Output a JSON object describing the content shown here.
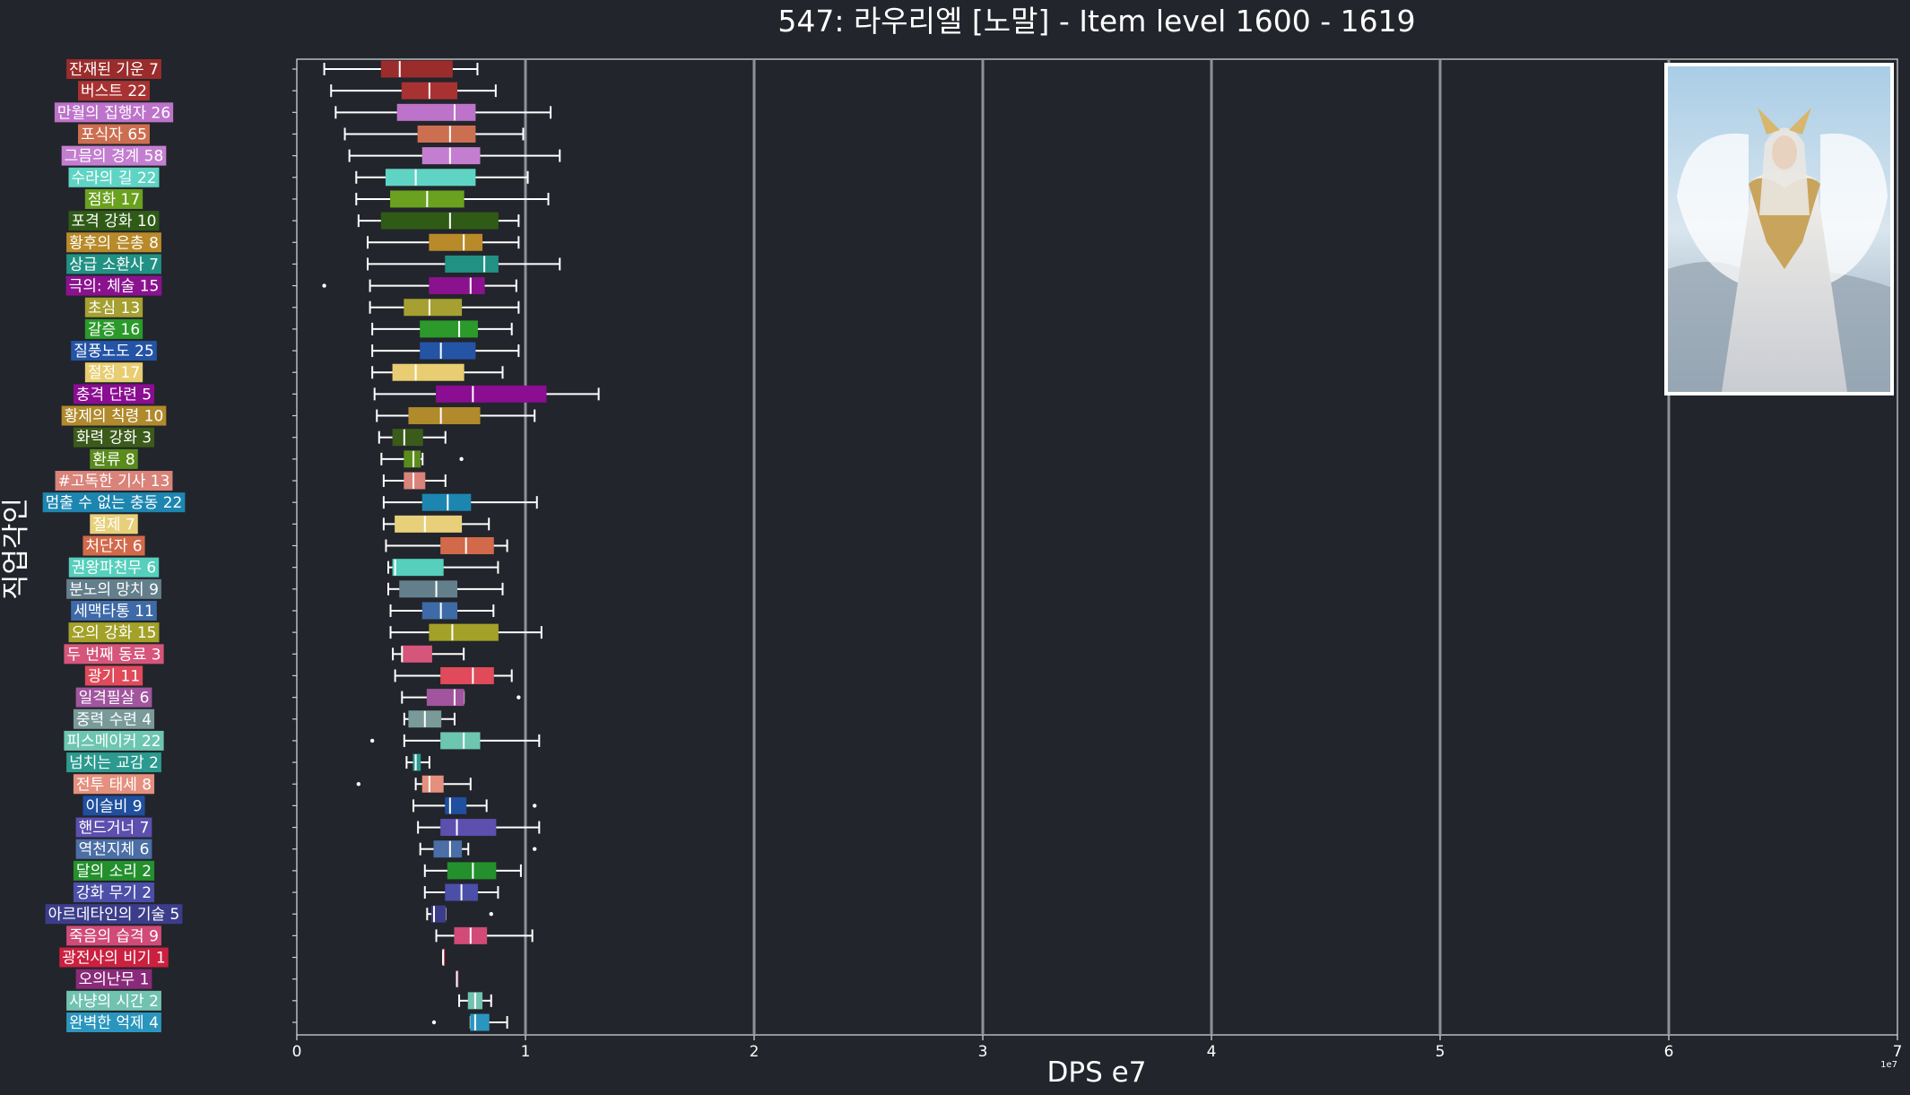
{
  "chart_data": {
    "type": "boxplot",
    "title": "547: 라우리엘 [노말] - Item level 1600 - 1619",
    "xlabel": "DPS e7",
    "ylabel": "직업각인",
    "xlim": [
      0,
      7
    ],
    "x_ticks": [
      "0",
      "1",
      "2",
      "3",
      "4",
      "5",
      "6",
      "7"
    ],
    "x_exponent_label": "1e7",
    "grid": "vertical",
    "categories": [
      {
        "label": "잔재된 기운 7",
        "color": "#9b2c2c",
        "whisker_low": 0.12,
        "q1": 0.37,
        "median": 0.45,
        "q3": 0.68,
        "whisker_high": 0.79,
        "outliers": []
      },
      {
        "label": "버스트 22",
        "color": "#a83232",
        "whisker_low": 0.15,
        "q1": 0.46,
        "median": 0.58,
        "q3": 0.7,
        "whisker_high": 0.87,
        "outliers": []
      },
      {
        "label": "만월의 집행자 26",
        "color": "#bd73c9",
        "whisker_low": 0.17,
        "q1": 0.44,
        "median": 0.69,
        "q3": 0.78,
        "whisker_high": 1.11,
        "outliers": []
      },
      {
        "label": "포식자 65",
        "color": "#cc6e50",
        "whisker_low": 0.21,
        "q1": 0.53,
        "median": 0.67,
        "q3": 0.78,
        "whisker_high": 0.99,
        "outliers": []
      },
      {
        "label": "그믐의 경계 58",
        "color": "#c47ed0",
        "whisker_low": 0.23,
        "q1": 0.55,
        "median": 0.67,
        "q3": 0.8,
        "whisker_high": 1.15,
        "outliers": []
      },
      {
        "label": "수라의 길 22",
        "color": "#5fd4c4",
        "whisker_low": 0.26,
        "q1": 0.39,
        "median": 0.52,
        "q3": 0.78,
        "whisker_high": 1.01,
        "outliers": []
      },
      {
        "label": "점화 17",
        "color": "#6aa11f",
        "whisker_low": 0.26,
        "q1": 0.41,
        "median": 0.57,
        "q3": 0.73,
        "whisker_high": 1.1,
        "outliers": []
      },
      {
        "label": "포격 강화 10",
        "color": "#2f5b17",
        "whisker_low": 0.27,
        "q1": 0.37,
        "median": 0.67,
        "q3": 0.88,
        "whisker_high": 0.97,
        "outliers": []
      },
      {
        "label": "황후의 은총 8",
        "color": "#b88a29",
        "whisker_low": 0.31,
        "q1": 0.58,
        "median": 0.73,
        "q3": 0.81,
        "whisker_high": 0.97,
        "outliers": []
      },
      {
        "label": "상급 소환사 7",
        "color": "#219184",
        "whisker_low": 0.31,
        "q1": 0.65,
        "median": 0.82,
        "q3": 0.88,
        "whisker_high": 1.15,
        "outliers": []
      },
      {
        "label": "극의: 체술 15",
        "color": "#8b128f",
        "whisker_low": 0.32,
        "q1": 0.58,
        "median": 0.76,
        "q3": 0.82,
        "whisker_high": 0.96,
        "outliers": [
          0.12
        ]
      },
      {
        "label": "초심 13",
        "color": "#a6a032",
        "whisker_low": 0.32,
        "q1": 0.47,
        "median": 0.58,
        "q3": 0.72,
        "whisker_high": 0.97,
        "outliers": []
      },
      {
        "label": "갈증 16",
        "color": "#2b9a2b",
        "whisker_low": 0.33,
        "q1": 0.54,
        "median": 0.71,
        "q3": 0.79,
        "whisker_high": 0.94,
        "outliers": []
      },
      {
        "label": "질풍노도 25",
        "color": "#2454a6",
        "whisker_low": 0.33,
        "q1": 0.54,
        "median": 0.63,
        "q3": 0.78,
        "whisker_high": 0.97,
        "outliers": []
      },
      {
        "label": "절정 17",
        "color": "#e8cd72",
        "whisker_low": 0.33,
        "q1": 0.42,
        "median": 0.52,
        "q3": 0.73,
        "whisker_high": 0.9,
        "outliers": []
      },
      {
        "label": "충격 단련 5",
        "color": "#8a0d92",
        "whisker_low": 0.34,
        "q1": 0.61,
        "median": 0.77,
        "q3": 1.09,
        "whisker_high": 1.32,
        "outliers": []
      },
      {
        "label": "황제의 칙령 10",
        "color": "#b18a2c",
        "whisker_low": 0.35,
        "q1": 0.49,
        "median": 0.63,
        "q3": 0.8,
        "whisker_high": 1.04,
        "outliers": []
      },
      {
        "label": "화력 강화 3",
        "color": "#3b5b1a",
        "whisker_low": 0.36,
        "q1": 0.42,
        "median": 0.47,
        "q3": 0.55,
        "whisker_high": 0.65,
        "outliers": []
      },
      {
        "label": "환류 8",
        "color": "#5a8c1c",
        "whisker_low": 0.37,
        "q1": 0.47,
        "median": 0.51,
        "q3": 0.54,
        "whisker_high": 0.55,
        "outliers": [
          0.72
        ]
      },
      {
        "label": "#고독한 기사 13",
        "color": "#d9837a",
        "whisker_low": 0.38,
        "q1": 0.47,
        "median": 0.51,
        "q3": 0.56,
        "whisker_high": 0.65,
        "outliers": []
      },
      {
        "label": "멈출 수 없는 충동 22",
        "color": "#1d86b0",
        "whisker_low": 0.38,
        "q1": 0.55,
        "median": 0.66,
        "q3": 0.76,
        "whisker_high": 1.05,
        "outliers": []
      },
      {
        "label": "절제 7",
        "color": "#e8d07a",
        "whisker_low": 0.38,
        "q1": 0.43,
        "median": 0.56,
        "q3": 0.72,
        "whisker_high": 0.84,
        "outliers": []
      },
      {
        "label": "처단자 6",
        "color": "#d2694a",
        "whisker_low": 0.39,
        "q1": 0.63,
        "median": 0.74,
        "q3": 0.86,
        "whisker_high": 0.92,
        "outliers": []
      },
      {
        "label": "권왕파천무 6",
        "color": "#56cfbd",
        "whisker_low": 0.4,
        "q1": 0.42,
        "median": 0.43,
        "q3": 0.64,
        "whisker_high": 0.88,
        "outliers": []
      },
      {
        "label": "분노의 망치 9",
        "color": "#647f8c",
        "whisker_low": 0.4,
        "q1": 0.45,
        "median": 0.61,
        "q3": 0.7,
        "whisker_high": 0.9,
        "outliers": []
      },
      {
        "label": "세맥타통 11",
        "color": "#3e6aa8",
        "whisker_low": 0.41,
        "q1": 0.55,
        "median": 0.63,
        "q3": 0.7,
        "whisker_high": 0.86,
        "outliers": []
      },
      {
        "label": "오의 강화 15",
        "color": "#a3a128",
        "whisker_low": 0.41,
        "q1": 0.58,
        "median": 0.68,
        "q3": 0.88,
        "whisker_high": 1.07,
        "outliers": []
      },
      {
        "label": "두 번째 동료 3",
        "color": "#d6557a",
        "whisker_low": 0.42,
        "q1": 0.46,
        "median": 0.46,
        "q3": 0.59,
        "whisker_high": 0.73,
        "outliers": []
      },
      {
        "label": "광기 11",
        "color": "#e04a5b",
        "whisker_low": 0.43,
        "q1": 0.63,
        "median": 0.77,
        "q3": 0.86,
        "whisker_high": 0.94,
        "outliers": []
      },
      {
        "label": "일격필살 6",
        "color": "#a0559e",
        "whisker_low": 0.46,
        "q1": 0.57,
        "median": 0.69,
        "q3": 0.73,
        "whisker_high": 0.73,
        "outliers": [
          0.97
        ]
      },
      {
        "label": "중력 수련 4",
        "color": "#7a9a9a",
        "whisker_low": 0.47,
        "q1": 0.49,
        "median": 0.56,
        "q3": 0.63,
        "whisker_high": 0.69,
        "outliers": []
      },
      {
        "label": "피스메이커 22",
        "color": "#6dc6b0",
        "whisker_low": 0.47,
        "q1": 0.63,
        "median": 0.73,
        "q3": 0.8,
        "whisker_high": 1.06,
        "outliers": [
          0.33
        ]
      },
      {
        "label": "넘치는 교감 2",
        "color": "#2c9a8f",
        "whisker_low": 0.48,
        "q1": 0.51,
        "median": 0.52,
        "q3": 0.54,
        "whisker_high": 0.58,
        "outliers": []
      },
      {
        "label": "전투 태세 8",
        "color": "#e5907e",
        "whisker_low": 0.52,
        "q1": 0.55,
        "median": 0.58,
        "q3": 0.64,
        "whisker_high": 0.76,
        "outliers": [
          0.27
        ]
      },
      {
        "label": "이슬비 9",
        "color": "#1f4f9e",
        "whisker_low": 0.51,
        "q1": 0.65,
        "median": 0.67,
        "q3": 0.74,
        "whisker_high": 0.83,
        "outliers": [
          1.04
        ]
      },
      {
        "label": "핸드거너 7",
        "color": "#5c4fae",
        "whisker_low": 0.53,
        "q1": 0.63,
        "median": 0.7,
        "q3": 0.87,
        "whisker_high": 1.06,
        "outliers": []
      },
      {
        "label": "역천지체 6",
        "color": "#4a6ea5",
        "whisker_low": 0.54,
        "q1": 0.6,
        "median": 0.67,
        "q3": 0.72,
        "whisker_high": 0.75,
        "outliers": [
          1.04
        ]
      },
      {
        "label": "달의 소리 2",
        "color": "#23902d",
        "whisker_low": 0.56,
        "q1": 0.66,
        "median": 0.77,
        "q3": 0.87,
        "whisker_high": 0.98,
        "outliers": []
      },
      {
        "label": "강화 무기 2",
        "color": "#4b4fa8",
        "whisker_low": 0.56,
        "q1": 0.65,
        "median": 0.72,
        "q3": 0.79,
        "whisker_high": 0.88,
        "outliers": []
      },
      {
        "label": "아르데타인의 기술 5",
        "color": "#3c3d8a",
        "whisker_low": 0.57,
        "q1": 0.59,
        "median": 0.6,
        "q3": 0.65,
        "whisker_high": 0.65,
        "outliers": [
          0.85
        ]
      },
      {
        "label": "죽음의 습격 9",
        "color": "#d14a78",
        "whisker_low": 0.61,
        "q1": 0.69,
        "median": 0.76,
        "q3": 0.83,
        "whisker_high": 1.03,
        "outliers": []
      },
      {
        "label": "광전사의 비기 1",
        "color": "#cc2040",
        "whisker_low": 0.64,
        "q1": 0.64,
        "median": 0.64,
        "q3": 0.64,
        "whisker_high": 0.64,
        "outliers": []
      },
      {
        "label": "오의난무 1",
        "color": "#8a2a7a",
        "whisker_low": 0.7,
        "q1": 0.7,
        "median": 0.7,
        "q3": 0.7,
        "whisker_high": 0.7,
        "outliers": []
      },
      {
        "label": "사냥의 시간 2",
        "color": "#72c2b2",
        "whisker_low": 0.71,
        "q1": 0.75,
        "median": 0.78,
        "q3": 0.81,
        "whisker_high": 0.85,
        "outliers": []
      },
      {
        "label": "완벽한 억제 4",
        "color": "#2a96be",
        "whisker_low": 0.76,
        "q1": 0.76,
        "median": 0.78,
        "q3": 0.84,
        "whisker_high": 0.92,
        "outliers": [
          0.6
        ]
      }
    ]
  }
}
